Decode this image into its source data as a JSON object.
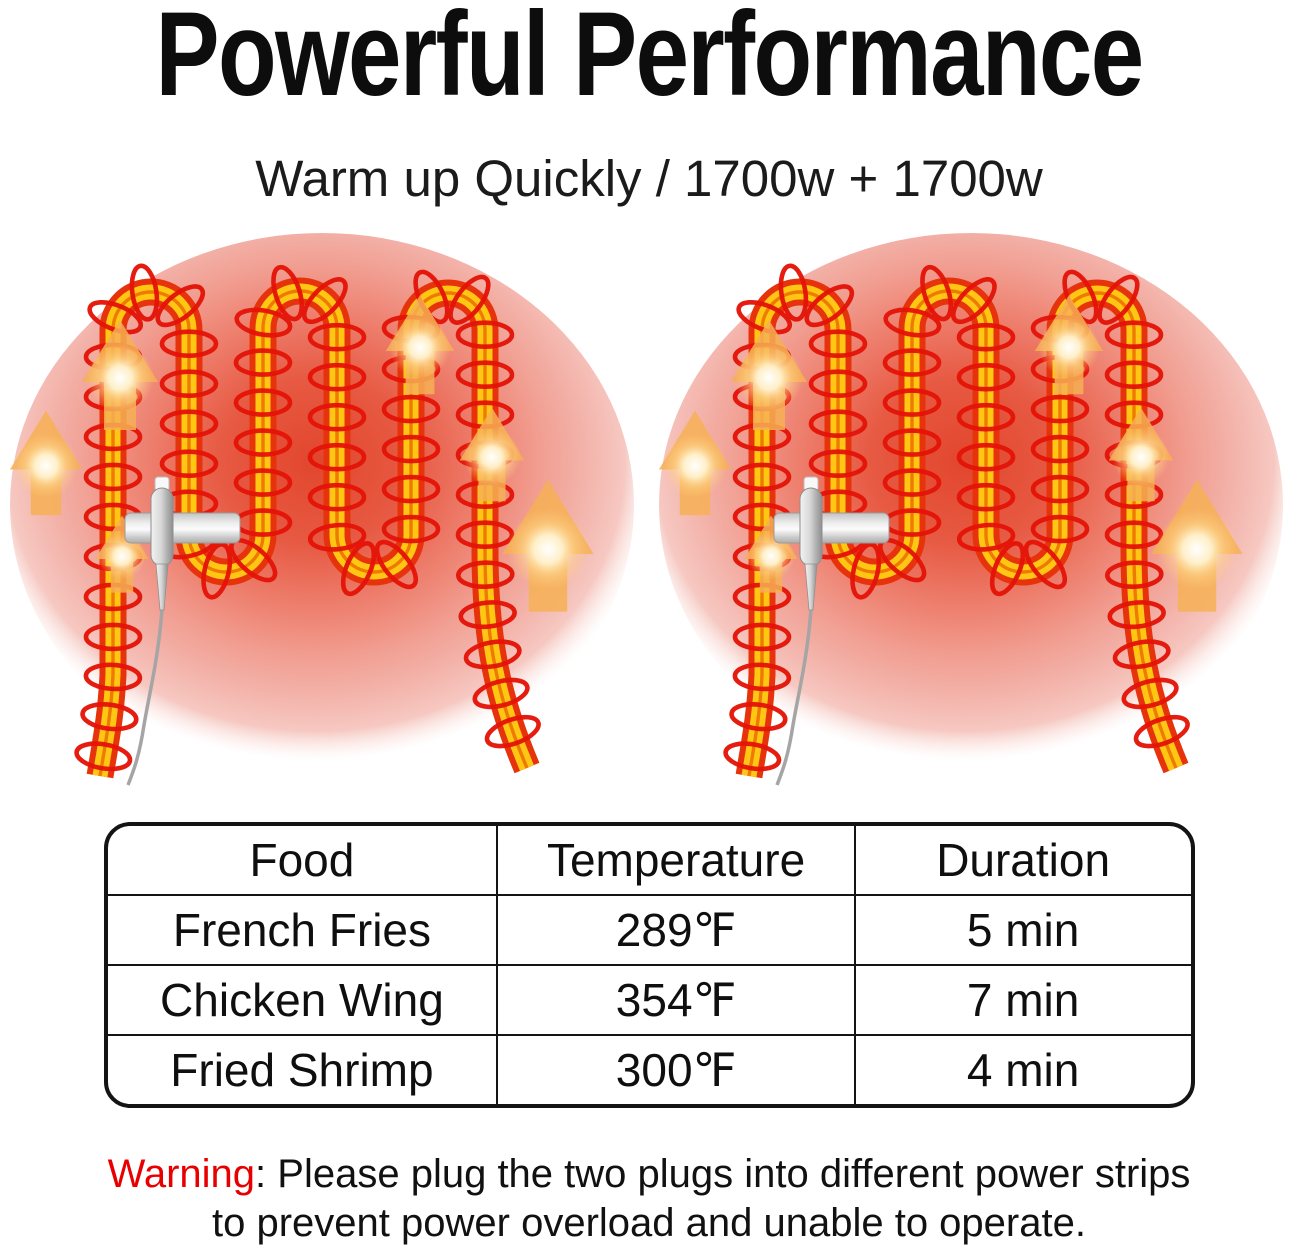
{
  "header": {
    "title": "Powerful Performance",
    "subtitle": "Warm up Quickly / 1700w + 1700w"
  },
  "figure": {
    "description": "Two identical serpentine heating elements glowing over red heat halos",
    "icons": {
      "heating_coil": "heating-coil-icon",
      "heat_arrow": "heat-rising-arrow-icon",
      "thermostat_probe": "thermostat-probe-icon"
    }
  },
  "table": {
    "columns": [
      "Food",
      "Temperature",
      "Duration"
    ],
    "rows": [
      {
        "food": "French Fries",
        "temperature": "289℉",
        "duration": "5 min"
      },
      {
        "food": "Chicken Wing",
        "temperature": "354℉",
        "duration": "7 min"
      },
      {
        "food": "Fried Shrimp",
        "temperature": "300℉",
        "duration": "4 min"
      }
    ]
  },
  "warning": {
    "label": "Warning",
    "separator": ": ",
    "lines": [
      "Please plug the two plugs into different power strips",
      "to prevent power overload and unable to operate."
    ]
  },
  "colors": {
    "text": "#101010",
    "warning_red": "#e80000",
    "halo_center_red": "#e2462d",
    "halo_edge_pink": "#f4b7ae",
    "tube_outline_red": "#e7330c",
    "tube_core_yellow": "#ffc713",
    "tube_center_orange": "#ee7a00",
    "coil_ring_red": "#e41408",
    "arrow_amber": "#f6b055",
    "probe_metal_gray": "#c9c9c9",
    "table_border_black": "#141414"
  }
}
